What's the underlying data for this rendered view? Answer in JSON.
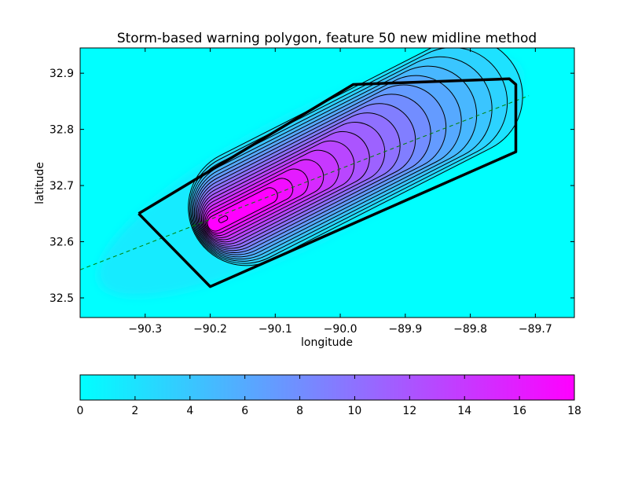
{
  "chart_data": {
    "type": "heatmap",
    "title": "Storm-based warning polygon, feature 50 new midline method",
    "xlabel": "longitude",
    "ylabel": "latitude",
    "xlim": [
      -90.4,
      -89.64
    ],
    "ylim": [
      32.465,
      32.945
    ],
    "x_ticks": [
      -90.3,
      -90.2,
      -90.1,
      -90.0,
      -89.9,
      -89.8,
      -89.7
    ],
    "x_tick_labels": [
      "−90.3",
      "−90.2",
      "−90.1",
      "−90.0",
      "−89.9",
      "−89.8",
      "−89.7"
    ],
    "y_ticks": [
      32.5,
      32.6,
      32.7,
      32.8,
      32.9
    ],
    "y_tick_labels": [
      "32.5",
      "32.6",
      "32.7",
      "32.8",
      "32.9"
    ],
    "grid": false,
    "colormap": [
      "#00ffff",
      "#ff00ff"
    ],
    "colorbar": {
      "orientation": "horizontal",
      "placement": "bottom",
      "range": [
        0,
        18
      ],
      "ticks": [
        0,
        2,
        4,
        6,
        8,
        10,
        12,
        14,
        16,
        18
      ],
      "tick_labels": [
        "0",
        "2",
        "4",
        "6",
        "8",
        "10",
        "12",
        "14",
        "16",
        "18"
      ]
    },
    "field": {
      "peak_value": 18,
      "peak_location": [
        -90.18,
        32.64
      ],
      "axis_direction_deg": 27,
      "contour_levels": [
        1,
        2,
        3,
        4,
        5,
        6,
        7,
        8,
        9,
        10,
        11,
        12,
        13,
        14,
        15,
        16,
        17
      ]
    },
    "warning_polygon": {
      "color": "#000000",
      "vertices": [
        [
          -90.31,
          32.65
        ],
        [
          -89.98,
          32.88
        ],
        [
          -89.74,
          32.89
        ],
        [
          -89.73,
          32.88
        ],
        [
          -89.73,
          32.76
        ],
        [
          -90.2,
          32.52
        ],
        [
          -90.31,
          32.65
        ]
      ]
    },
    "midline": {
      "color": "#008000",
      "style": "dashed",
      "points": [
        [
          -90.4,
          32.55
        ],
        [
          -89.71,
          32.86
        ]
      ]
    }
  }
}
